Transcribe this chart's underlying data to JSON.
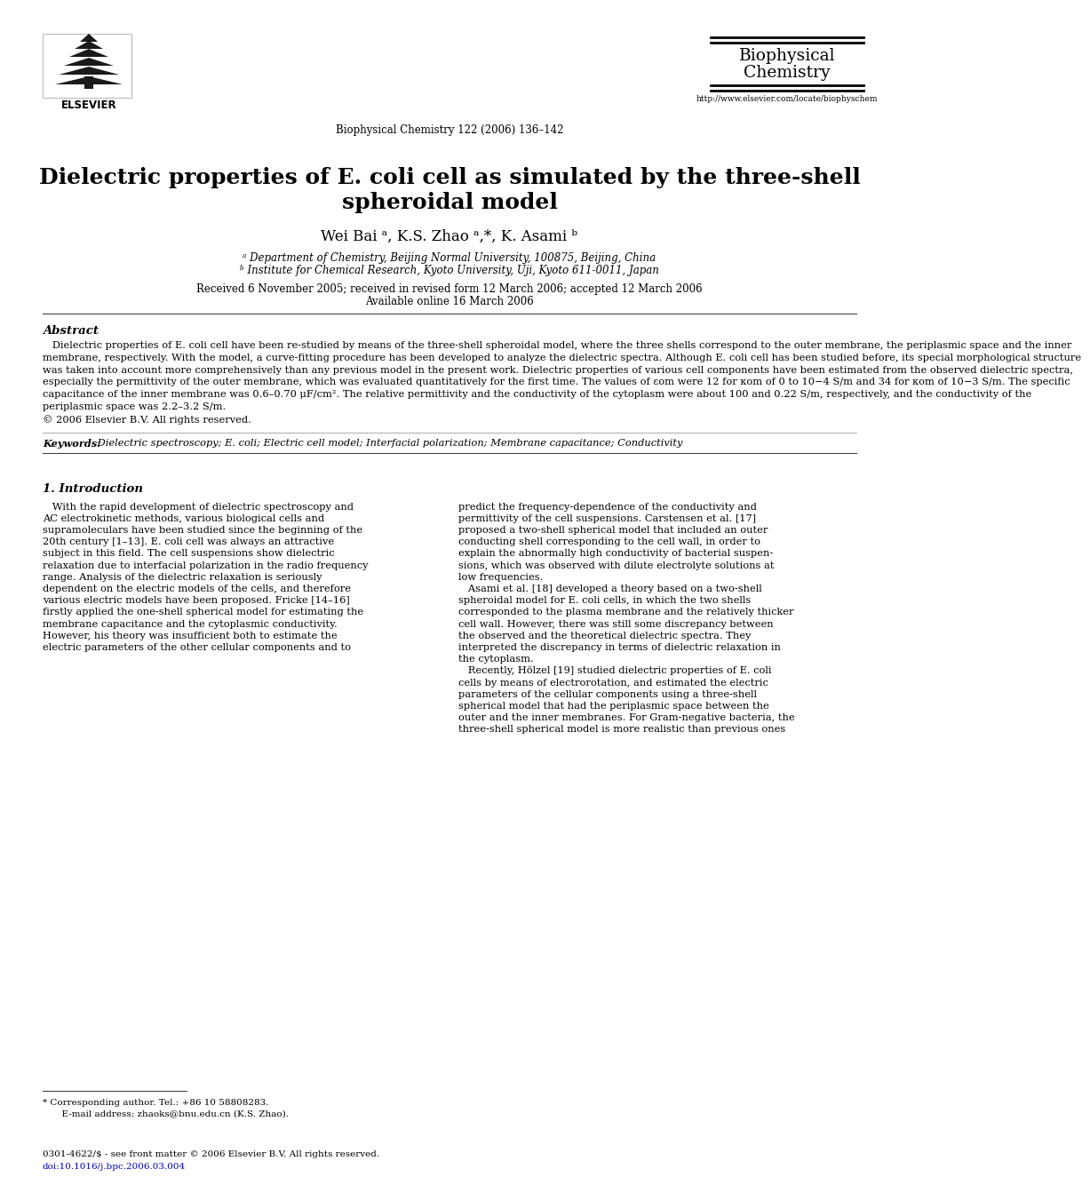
{
  "bg_color": "#ffffff",
  "journal_header": "Biophysical Chemistry 122 (2006) 136–142",
  "journal_name_line1": "Biophysical",
  "journal_name_line2": "Chemistry",
  "url": "http://www.elsevier.com/locate/biophyschem",
  "elsevier_text": "ELSEVIER",
  "title_line1": "Dielectric properties of E. coli cell as simulated by the three-shell",
  "title_line2": "spheroidal model",
  "authors": "Wei Bai ᵃ, K.S. Zhao ᵃ,*, K. Asami ᵇ",
  "affil_a": "ᵃ Department of Chemistry, Beijing Normal University, 100875, Beijing, China",
  "affil_b": "ᵇ Institute for Chemical Research, Kyoto University, Uji, Kyoto 611-0011, Japan",
  "received": "Received 6 November 2005; received in revised form 12 March 2006; accepted 12 March 2006",
  "available": "Available online 16 March 2006",
  "abstract_title": "Abstract",
  "abstract_lines": [
    "   Dielectric properties of E. coli cell have been re-studied by means of the three-shell spheroidal model, where the three shells correspond to the outer membrane, the periplasmic space and the inner",
    "membrane, respectively. With the model, a curve-fitting procedure has been developed to analyze the dielectric spectra. Although E. coli cell has been studied before, its special morphological structure",
    "was taken into account more comprehensively than any previous model in the present work. Dielectric properties of various cell components have been estimated from the observed dielectric spectra,",
    "especially the permittivity of the outer membrane, which was evaluated quantitatively for the first time. The values of εom were 12 for κom of 0 to 10−4 S/m and 34 for κom of 10−3 S/m. The specific",
    "capacitance of the inner membrane was 0.6–0.70 μF/cm². The relative permittivity and the conductivity of the cytoplasm were about 100 and 0.22 S/m, respectively, and the conductivity of the",
    "periplasmic space was 2.2–3.2 S/m.",
    "© 2006 Elsevier B.V. All rights reserved."
  ],
  "keywords_label": "Keywords:",
  "keywords_text": " Dielectric spectroscopy; E. coli; Electric cell model; Interfacial polarization; Membrane capacitance; Conductivity",
  "section1_title": "1. Introduction",
  "left_col_lines": [
    "   With the rapid development of dielectric spectroscopy and",
    "AC electrokinetic methods, various biological cells and",
    "supramoleculars have been studied since the beginning of the",
    "20th century [1–13]. E. coli cell was always an attractive",
    "subject in this field. The cell suspensions show dielectric",
    "relaxation due to interfacial polarization in the radio frequency",
    "range. Analysis of the dielectric relaxation is seriously",
    "dependent on the electric models of the cells, and therefore",
    "various electric models have been proposed. Fricke [14–16]",
    "firstly applied the one-shell spherical model for estimating the",
    "membrane capacitance and the cytoplasmic conductivity.",
    "However, his theory was insufficient both to estimate the",
    "electric parameters of the other cellular components and to"
  ],
  "right_col_lines": [
    "predict the frequency-dependence of the conductivity and",
    "permittivity of the cell suspensions. Carstensen et al. [17]",
    "proposed a two-shell spherical model that included an outer",
    "conducting shell corresponding to the cell wall, in order to",
    "explain the abnormally high conductivity of bacterial suspen-",
    "sions, which was observed with dilute electrolyte solutions at",
    "low frequencies.",
    "   Asami et al. [18] developed a theory based on a two-shell",
    "spheroidal model for E. coli cells, in which the two shells",
    "corresponded to the plasma membrane and the relatively thicker",
    "cell wall. However, there was still some discrepancy between",
    "the observed and the theoretical dielectric spectra. They",
    "interpreted the discrepancy in terms of dielectric relaxation in",
    "the cytoplasm.",
    "   Recently, Hölzel [19] studied dielectric properties of E. coli",
    "cells by means of electrorotation, and estimated the electric",
    "parameters of the cellular components using a three-shell",
    "spherical model that had the periplasmic space between the",
    "outer and the inner membranes. For Gram-negative bacteria, the",
    "three-shell spherical model is more realistic than previous ones"
  ],
  "footnote_line1": "* Corresponding author. Tel.: +86 10 58808283.",
  "footnote_line2": "  E-mail address: zhaoks@bnu.edu.cn (K.S. Zhao).",
  "footer_issn": "0301-4622/$ - see front matter © 2006 Elsevier B.V. All rights reserved.",
  "footer_doi": "doi:10.1016/j.bpc.2006.03.004",
  "link_color": "#0000BB"
}
